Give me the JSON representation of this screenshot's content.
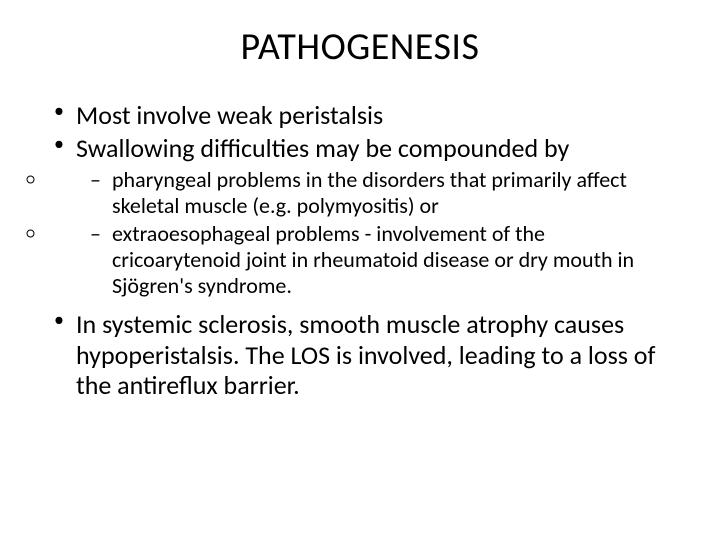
{
  "slide": {
    "title": "PATHOGENESIS",
    "bullets": {
      "b1": "Most involve weak peristalsis",
      "b2": "Swallowing difficulties may be compounded by",
      "b2_sub1": "pharyngeal problems in the disorders that primarily affect skeletal muscle (e.g. polymyositis) or",
      "b2_sub2": "extraoesophageal problems - involvement of the cricoarytenoid joint in rheumatoid disease or dry mouth in Sjögren's syndrome.",
      "b3": "In systemic sclerosis, smooth muscle atrophy causes hypoperistalsis. The LOS is involved, leading to a loss of the antireflux barrier."
    }
  },
  "style": {
    "background_color": "#ffffff",
    "text_color": "#000000",
    "title_fontsize": 38,
    "level1_fontsize": 26,
    "level2_fontsize": 22,
    "font_family": "Calibri"
  }
}
